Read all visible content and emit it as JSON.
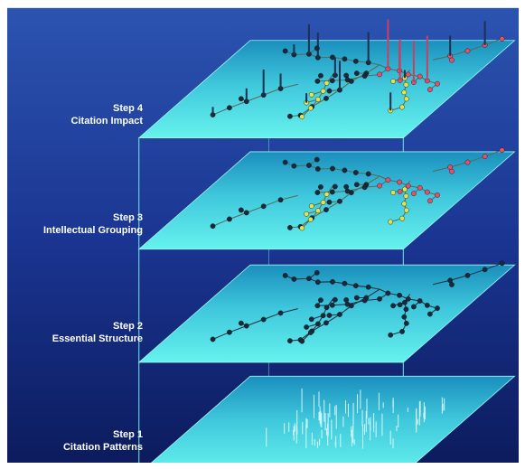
{
  "layers": [
    {
      "step": "Step 4",
      "title": "Citation Impact",
      "visual": "citation-impact-bars"
    },
    {
      "step": "Step 3",
      "title": "Intellectual Grouping",
      "visual": "intellectual-grouping-network"
    },
    {
      "step": "Step 2",
      "title": "Essential Structure",
      "visual": "essential-structure-network"
    },
    {
      "step": "Step 1",
      "title": "Citation Patterns",
      "visual": "citation-patterns-bars"
    }
  ],
  "colors": {
    "background_top": "#1d3a8c",
    "background_bottom": "#0b1c5e",
    "plane_light": "#66f2ee",
    "plane_dark": "#1a8fbd",
    "frame_line": "#6fe5e5",
    "node_dark": "#1a2a3a",
    "node_yellow": "#e6e24a",
    "node_red": "#e8506a",
    "pattern_white": "#eaffff"
  }
}
